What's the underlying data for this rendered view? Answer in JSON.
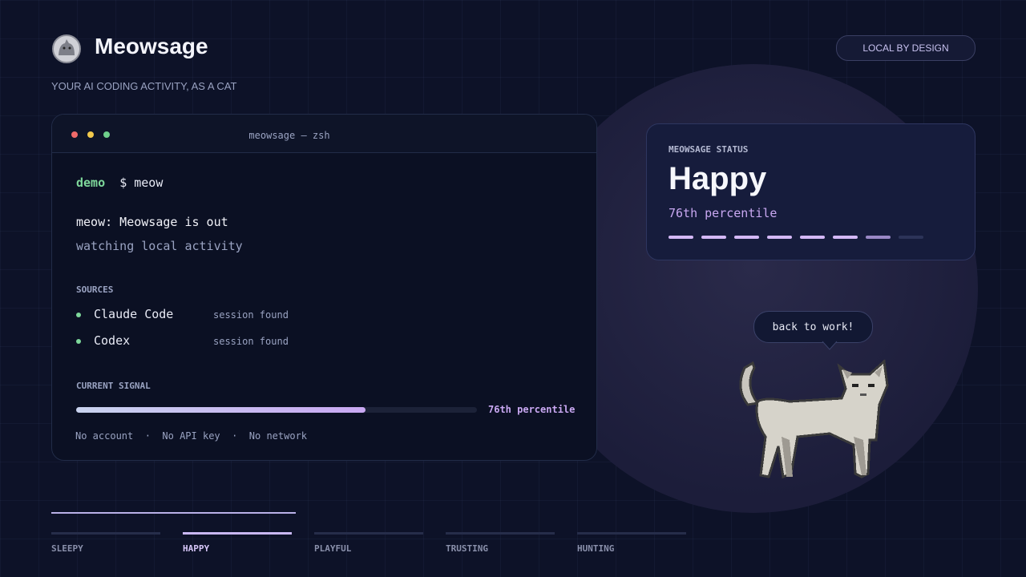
{
  "header": {
    "title": "Meowsage",
    "subtitle": "YOUR AI CODING ACTIVITY, AS A CAT",
    "badge": "LOCAL BY DESIGN"
  },
  "terminal": {
    "window_title": "meowsage — zsh",
    "prompt_user": "demo",
    "prompt_symbol": "$",
    "command": "meow",
    "output": "meow: Meowsage is out",
    "output_note": "watching local activity",
    "sources_heading": "SOURCES",
    "sources": [
      {
        "name": "Claude Code",
        "status": "session found"
      },
      {
        "name": "Codex",
        "status": "session found"
      }
    ],
    "signal_heading": "CURRENT SIGNAL",
    "signal_label": "76th percentile",
    "footer": [
      "No account",
      "No API key",
      "No network"
    ],
    "footer_separator": "·"
  },
  "status": {
    "heading": "MEOWSAGE STATUS",
    "mood": "Happy",
    "percentile": "76th percentile"
  },
  "speech": "back to work!",
  "tabs": [
    "SLEEPY",
    "HAPPY",
    "PLAYFUL",
    "TRUSTING",
    "HUNTING"
  ]
}
